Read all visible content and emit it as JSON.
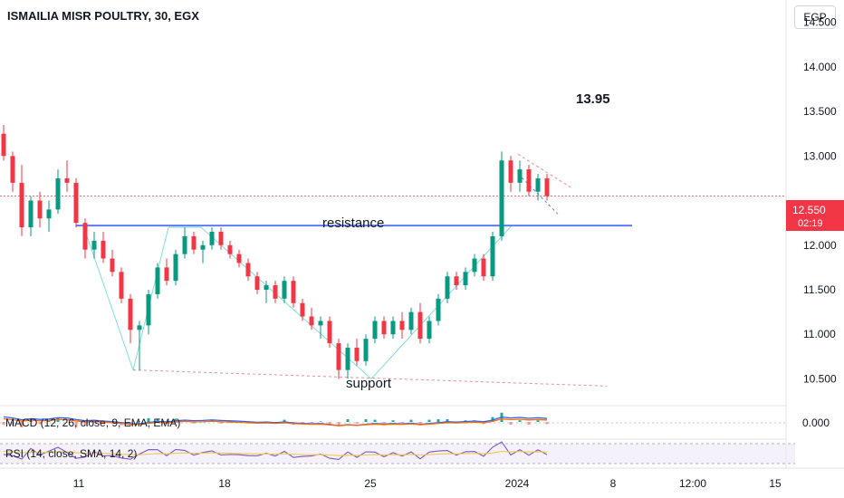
{
  "header": {
    "title": "ISMAILIA MISR POULTRY, 30, EGX",
    "currency": "EGP"
  },
  "price_axis": {
    "ticks": [
      "14.500",
      "14.000",
      "13.500",
      "13.000",
      "12.000",
      "11.500",
      "11.000",
      "10.500"
    ]
  },
  "current_price": {
    "value": "12.550",
    "countdown": "02:19",
    "color": "#f23645"
  },
  "time_axis": {
    "ticks": [
      "11",
      "18",
      "25",
      "2024",
      "8",
      "12:00",
      "15"
    ]
  },
  "annotations": {
    "target": "13.95",
    "resistance": "resistance",
    "support": "support"
  },
  "macd": {
    "label": "MACD (12, 26, close, 9, EMA, EMA)",
    "value": "0.000"
  },
  "rsi": {
    "label": "RSI (14, close, SMA, 14, 2)"
  },
  "colors": {
    "up": "#089981",
    "down": "#f23645",
    "resistance_line": "#5b7cf0",
    "pattern_line": "#7fe0d6",
    "macd_line": "#2962ff",
    "signal_line": "#ff6d00",
    "rsi_line": "#7e57c2",
    "rsi_ma": "#f2c94c"
  },
  "chart_data": {
    "type": "candlestick",
    "ylim": [
      10.2,
      14.75
    ],
    "resistance_level": 12.22,
    "current_price": 12.55,
    "candles": [
      [
        13.25,
        13.35,
        12.95,
        13.0
      ],
      [
        13.0,
        13.05,
        12.6,
        12.7
      ],
      [
        12.7,
        12.9,
        12.1,
        12.2
      ],
      [
        12.2,
        12.55,
        12.1,
        12.5
      ],
      [
        12.5,
        12.6,
        12.2,
        12.3
      ],
      [
        12.3,
        12.5,
        12.15,
        12.4
      ],
      [
        12.4,
        12.85,
        12.35,
        12.75
      ],
      [
        12.75,
        12.95,
        12.6,
        12.7
      ],
      [
        12.7,
        12.75,
        12.2,
        12.25
      ],
      [
        12.25,
        12.3,
        11.85,
        11.95
      ],
      [
        11.95,
        12.15,
        11.85,
        12.05
      ],
      [
        12.05,
        12.15,
        11.8,
        11.85
      ],
      [
        11.85,
        11.95,
        11.65,
        11.7
      ],
      [
        11.7,
        11.75,
        11.35,
        11.4
      ],
      [
        11.4,
        11.45,
        10.9,
        11.05
      ],
      [
        11.05,
        11.15,
        10.6,
        11.1
      ],
      [
        11.1,
        11.5,
        11.0,
        11.45
      ],
      [
        11.45,
        11.8,
        11.4,
        11.75
      ],
      [
        11.75,
        11.85,
        11.55,
        11.6
      ],
      [
        11.6,
        11.95,
        11.55,
        11.9
      ],
      [
        11.9,
        12.2,
        11.85,
        12.1
      ],
      [
        12.1,
        12.15,
        11.9,
        11.95
      ],
      [
        11.95,
        12.05,
        11.8,
        12.0
      ],
      [
        12.0,
        12.2,
        11.95,
        12.15
      ],
      [
        12.15,
        12.2,
        11.95,
        12.0
      ],
      [
        12.0,
        12.05,
        11.85,
        11.9
      ],
      [
        11.9,
        11.95,
        11.75,
        11.8
      ],
      [
        11.8,
        11.85,
        11.6,
        11.65
      ],
      [
        11.65,
        11.7,
        11.45,
        11.5
      ],
      [
        11.5,
        11.6,
        11.35,
        11.55
      ],
      [
        11.55,
        11.6,
        11.35,
        11.4
      ],
      [
        11.4,
        11.65,
        11.35,
        11.6
      ],
      [
        11.6,
        11.65,
        11.3,
        11.35
      ],
      [
        11.35,
        11.4,
        11.15,
        11.2
      ],
      [
        11.2,
        11.3,
        11.05,
        11.1
      ],
      [
        11.1,
        11.2,
        10.95,
        11.15
      ],
      [
        11.15,
        11.2,
        10.85,
        10.9
      ],
      [
        10.9,
        10.95,
        10.5,
        10.6
      ],
      [
        10.6,
        10.9,
        10.5,
        10.85
      ],
      [
        10.85,
        10.95,
        10.65,
        10.7
      ],
      [
        10.7,
        11.0,
        10.65,
        10.95
      ],
      [
        10.95,
        11.2,
        10.9,
        11.15
      ],
      [
        11.15,
        11.2,
        10.95,
        11.0
      ],
      [
        11.0,
        11.2,
        10.95,
        11.15
      ],
      [
        11.15,
        11.25,
        10.95,
        11.05
      ],
      [
        11.05,
        11.3,
        11.0,
        11.25
      ],
      [
        11.25,
        11.35,
        10.9,
        10.95
      ],
      [
        10.95,
        11.2,
        10.9,
        11.15
      ],
      [
        11.15,
        11.45,
        11.1,
        11.4
      ],
      [
        11.4,
        11.7,
        11.35,
        11.65
      ],
      [
        11.65,
        11.7,
        11.5,
        11.55
      ],
      [
        11.55,
        11.75,
        11.5,
        11.7
      ],
      [
        11.7,
        11.9,
        11.65,
        11.85
      ],
      [
        11.85,
        11.9,
        11.6,
        11.65
      ],
      [
        11.65,
        12.15,
        11.6,
        12.1
      ],
      [
        12.1,
        13.05,
        12.05,
        12.95
      ],
      [
        12.95,
        13.0,
        12.6,
        12.7
      ],
      [
        12.7,
        12.95,
        12.6,
        12.85
      ],
      [
        12.85,
        12.9,
        12.55,
        12.6
      ],
      [
        12.6,
        12.8,
        12.5,
        12.75
      ],
      [
        12.75,
        12.8,
        12.5,
        12.55
      ]
    ]
  }
}
